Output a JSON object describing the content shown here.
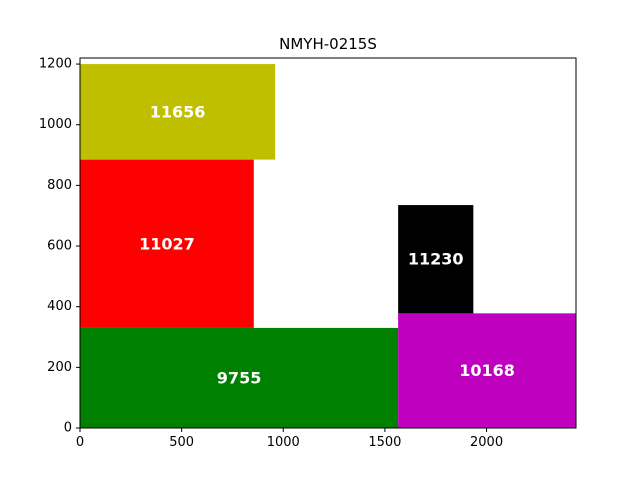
{
  "chart_data": {
    "type": "rectangles",
    "title": "NMYH-0215S",
    "xlabel": "",
    "ylabel": "",
    "xlim": [
      0,
      2440
    ],
    "ylim": [
      0,
      1220
    ],
    "xticks": [
      0,
      500,
      1000,
      1500,
      2000
    ],
    "yticks": [
      0,
      200,
      400,
      600,
      800,
      1000,
      1200
    ],
    "grid": false,
    "legend": "none",
    "rects": [
      {
        "label": "9755",
        "x0": 0,
        "x1": 1565,
        "y0": 0,
        "y1": 330,
        "color": "#008000"
      },
      {
        "label": "10168",
        "x0": 1565,
        "x1": 2440,
        "y0": 0,
        "y1": 378,
        "color": "#bf00bf"
      },
      {
        "label": "11027",
        "x0": 0,
        "x1": 855,
        "y0": 330,
        "y1": 885,
        "color": "#ff0000"
      },
      {
        "label": "11230",
        "x0": 1565,
        "x1": 1935,
        "y0": 378,
        "y1": 735,
        "color": "#000000"
      },
      {
        "label": "11656",
        "x0": 0,
        "x1": 960,
        "y0": 885,
        "y1": 1200,
        "color": "#bfbf00"
      }
    ]
  }
}
